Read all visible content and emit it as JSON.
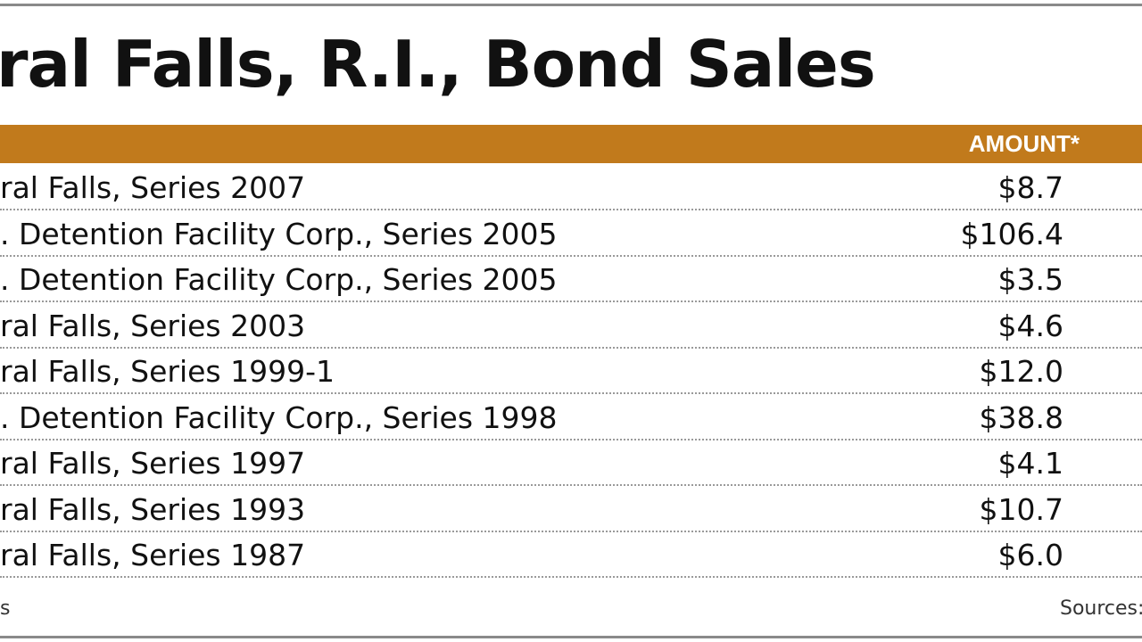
{
  "header": {
    "title": "ral Falls, R.I., Bond Sales"
  },
  "table": {
    "columns": [
      "AMOUNT*"
    ],
    "rows": [
      [
        "ral Falls, Series 2007",
        "$8.7"
      ],
      [
        ". Detention Facility Corp., Series 2005",
        "$106.4"
      ],
      [
        ". Detention Facility Corp., Series 2005",
        "$3.5"
      ],
      [
        "ral Falls, Series 2003",
        "$4.6"
      ],
      [
        "ral Falls, Series 1999-1",
        "$12.0"
      ],
      [
        ". Detention Facility Corp., Series 1998",
        "$38.8"
      ],
      [
        "ral Falls, Series 1997",
        "$4.1"
      ],
      [
        "ral Falls, Series 1993",
        "$10.7"
      ],
      [
        "ral Falls, Series 1987",
        "$6.0"
      ]
    ]
  },
  "footer": {
    "left": "s",
    "right": "Sources:"
  }
}
